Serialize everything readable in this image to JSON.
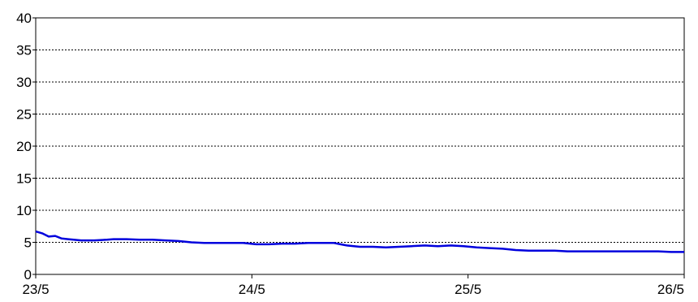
{
  "chart_data": {
    "type": "line",
    "title": "",
    "xlabel": "",
    "ylabel": "",
    "ylim": [
      0,
      40
    ],
    "y_ticks": [
      0,
      5,
      10,
      15,
      20,
      25,
      30,
      35,
      40
    ],
    "x_ticks": [
      "23/5",
      "24/5",
      "25/5",
      "26/5"
    ],
    "grid": "horizontal dotted",
    "legend": "none",
    "series": [
      {
        "color": "#0000dd",
        "points": [
          [
            0.0,
            6.7
          ],
          [
            0.01,
            6.4
          ],
          [
            0.02,
            5.9
          ],
          [
            0.03,
            6.0
          ],
          [
            0.04,
            5.6
          ],
          [
            0.05,
            5.5
          ],
          [
            0.07,
            5.3
          ],
          [
            0.09,
            5.3
          ],
          [
            0.11,
            5.4
          ],
          [
            0.12,
            5.5
          ],
          [
            0.14,
            5.5
          ],
          [
            0.16,
            5.4
          ],
          [
            0.18,
            5.4
          ],
          [
            0.2,
            5.3
          ],
          [
            0.22,
            5.2
          ],
          [
            0.24,
            5.0
          ],
          [
            0.26,
            4.9
          ],
          [
            0.28,
            4.9
          ],
          [
            0.3,
            4.9
          ],
          [
            0.32,
            4.9
          ],
          [
            0.34,
            4.7
          ],
          [
            0.36,
            4.7
          ],
          [
            0.38,
            4.8
          ],
          [
            0.4,
            4.8
          ],
          [
            0.42,
            4.9
          ],
          [
            0.44,
            4.9
          ],
          [
            0.46,
            4.9
          ],
          [
            0.47,
            4.7
          ],
          [
            0.48,
            4.5
          ],
          [
            0.5,
            4.3
          ],
          [
            0.52,
            4.3
          ],
          [
            0.54,
            4.2
          ],
          [
            0.56,
            4.3
          ],
          [
            0.58,
            4.4
          ],
          [
            0.6,
            4.5
          ],
          [
            0.62,
            4.4
          ],
          [
            0.64,
            4.5
          ],
          [
            0.66,
            4.4
          ],
          [
            0.68,
            4.2
          ],
          [
            0.7,
            4.1
          ],
          [
            0.72,
            4.0
          ],
          [
            0.74,
            3.8
          ],
          [
            0.76,
            3.7
          ],
          [
            0.78,
            3.7
          ],
          [
            0.8,
            3.7
          ],
          [
            0.82,
            3.6
          ],
          [
            0.84,
            3.6
          ],
          [
            0.86,
            3.6
          ],
          [
            0.88,
            3.6
          ],
          [
            0.9,
            3.6
          ],
          [
            0.92,
            3.6
          ],
          [
            0.94,
            3.6
          ],
          [
            0.96,
            3.6
          ],
          [
            0.98,
            3.5
          ],
          [
            1.0,
            3.5
          ]
        ]
      }
    ]
  }
}
